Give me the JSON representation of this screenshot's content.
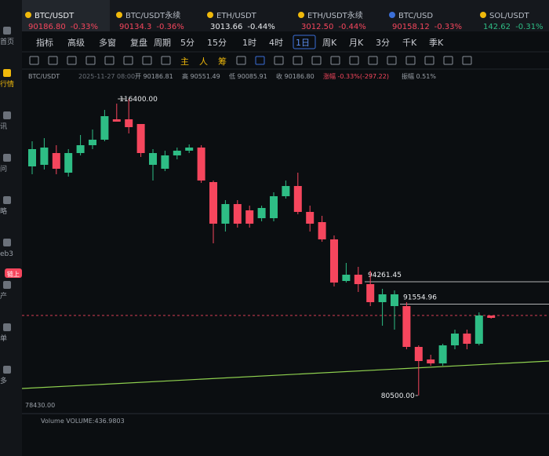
{
  "tabs": [
    {
      "name": "BTC/USDT",
      "price": "90186.80",
      "change": "-0.33%"
    },
    {
      "name": "BTC/USDT永续",
      "price": "90134.3",
      "change": "-0.36%"
    },
    {
      "name": "ETH/USDT",
      "price": "3013.66",
      "change": "-0.44%"
    },
    {
      "name": "ETH/USDT永续",
      "price": "3012.50",
      "change": "-0.44%"
    },
    {
      "name": "BTC/USD",
      "price": "90158.12",
      "change": "-0.33%"
    },
    {
      "name": "SOL/USDT",
      "price": "142.62",
      "change": "-0.31%"
    }
  ],
  "sidebar": [
    "首页",
    "行情",
    "讯",
    "问",
    "略",
    "eb3",
    "产",
    "单",
    "多"
  ],
  "sidebar_badge": "链上",
  "toolbar": [
    "指标",
    "高级",
    "多窗",
    "复盘",
    "周期",
    "5分",
    "15分",
    "1时",
    "4时",
    "1日",
    "周K",
    "月K",
    "3分",
    "千K",
    "季K"
  ],
  "toolbar_active": "1日",
  "draw_tools": [
    "主",
    "人",
    "筹"
  ],
  "info": {
    "symbol": "BTC/USDT",
    "time": "2025-11-27 08:00",
    "fields": [
      "开 90186.81",
      "高 90551.49",
      "低 90085.91",
      "收 90186.80",
      "涨幅 -0.33%(-297.22)",
      "振幅 0.51%"
    ]
  },
  "volume_label": "Volume VOLUME:436.9803",
  "chart": {
    "type": "candlestick",
    "ylim": [
      78495,
      118300
    ],
    "axis_label": "78430.00",
    "open": [
      108230,
      108420,
      109845,
      107470,
      109845,
      110795,
      111460,
      113930,
      113930,
      113360,
      108420,
      107945,
      109560,
      110130,
      110510,
      106330,
      101295,
      103670,
      102910,
      101960,
      101960,
      104620,
      105855,
      102720,
      101485,
      99395,
      94360,
      95120,
      93980,
      91795,
      91320,
      91320,
      86380,
      84860,
      84385,
      86570,
      87995,
      86760,
      90180
    ],
    "close": [
      110320,
      110510,
      107945,
      109845,
      110795,
      111460,
      114310,
      113645,
      112980,
      109845,
      109845,
      109560,
      110130,
      110510,
      106520,
      101295,
      103670,
      101295,
      101295,
      103195,
      104620,
      105855,
      102720,
      101295,
      99395,
      94170,
      95120,
      93980,
      91795,
      92745,
      92745,
      86380,
      84670,
      84385,
      86570,
      87995,
      86760,
      90180,
      89895
    ],
    "high": [
      111270,
      111650,
      110795,
      110320,
      112030,
      112695,
      115070,
      115830,
      116400,
      113360,
      110320,
      110130,
      110510,
      110890,
      110795,
      106520,
      104145,
      104145,
      103480,
      103480,
      105095,
      106520,
      107470,
      103480,
      102245,
      99870,
      96545,
      96070,
      95595,
      93410,
      93220,
      91795,
      86570,
      85430,
      86760,
      88470,
      88470,
      90560,
      90180
    ],
    "low": [
      107280,
      107850,
      107280,
      106995,
      109560,
      110320,
      111270,
      113645,
      112220,
      109370,
      106520,
      107660,
      109085,
      109845,
      106235,
      98920,
      100345,
      100820,
      100820,
      101580,
      101580,
      104335,
      102435,
      100345,
      99110,
      93695,
      94170,
      93030,
      91320,
      88945,
      88470,
      86095,
      80500,
      84100,
      84100,
      86095,
      86095,
      86570,
      89800
    ],
    "high_label": "116400.00",
    "low_label": "80500.00",
    "levels": [
      {
        "value": 94261.45,
        "label": "94261.45"
      },
      {
        "value": 91554.96,
        "label": "91554.96"
      }
    ],
    "last": 90186.8,
    "trendline": [
      81345,
      84670
    ]
  }
}
